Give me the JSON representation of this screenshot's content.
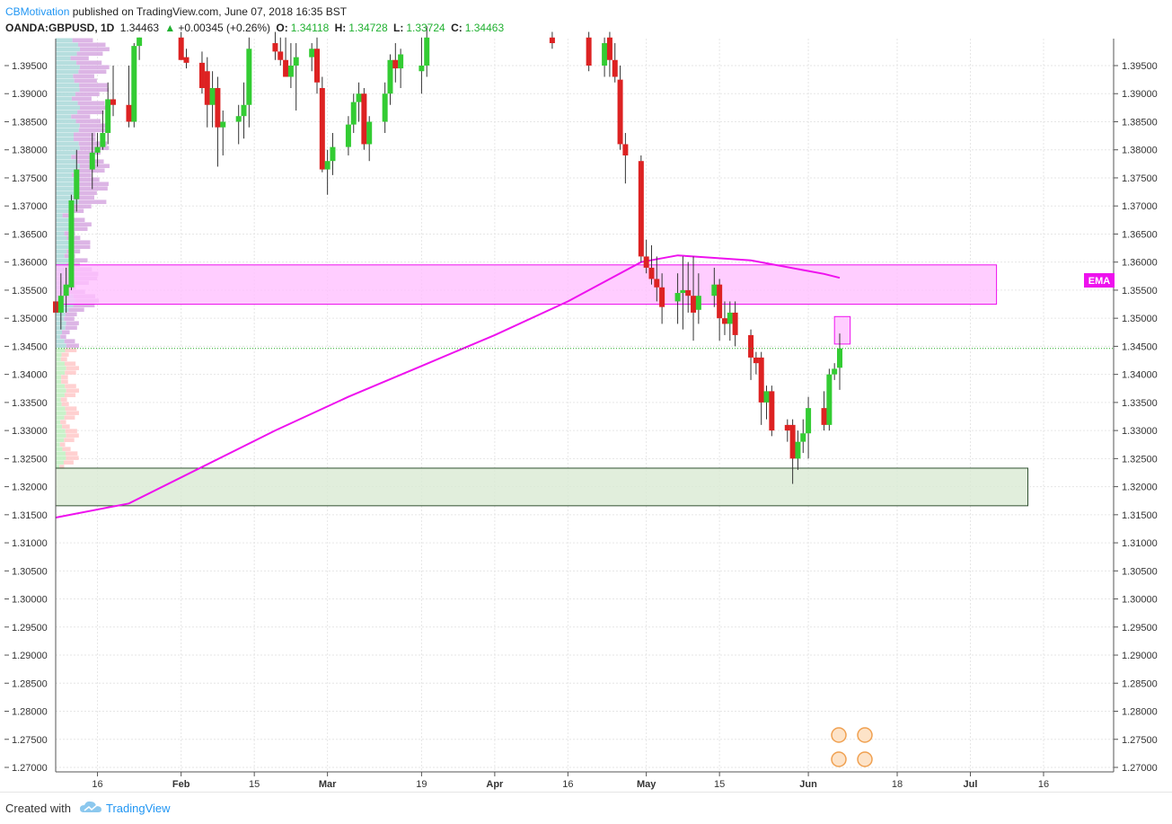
{
  "header": {
    "author": "CBMotivation",
    "published": "published on TradingView.com, June 07, 2018 16:35 BST",
    "symbol": "OANDA:GBPUSD, 1D",
    "last": "1.34463",
    "change": "+0.00345 (+0.26%)",
    "open_label": "O:",
    "open": "1.34118",
    "high_label": "H:",
    "high": "1.34728",
    "low_label": "L:",
    "low": "1.33724",
    "close_label": "C:",
    "close": "1.34463"
  },
  "ema_label": "EMA",
  "footer": {
    "created": "Created with",
    "brand": "TradingView"
  },
  "colors": {
    "up": "#33cc33",
    "down": "#dd2222",
    "ema": "#ee11ee",
    "resistance_zone": "#ffc0ff",
    "support_zone": "#d9ead3",
    "author": "#2196f3"
  },
  "chart_data": {
    "type": "candlestick",
    "title": "OANDA:GBPUSD, 1D",
    "ylim": [
      1.267,
      1.4
    ],
    "y_ticks": [
      "1.39500",
      "1.39000",
      "1.38500",
      "1.38000",
      "1.37500",
      "1.37000",
      "1.36500",
      "1.36000",
      "1.35500",
      "1.35000",
      "1.34500",
      "1.34000",
      "1.33500",
      "1.33000",
      "1.32500",
      "1.32000",
      "1.31500",
      "1.31000",
      "1.30500",
      "1.30000",
      "1.29500",
      "1.29000",
      "1.28500",
      "1.28000",
      "1.27500",
      "1.27000"
    ],
    "x_ticks": [
      "16",
      "Feb",
      "15",
      "Mar",
      "19",
      "Apr",
      "16",
      "May",
      "15",
      "Jun",
      "18",
      "Jul",
      "16"
    ],
    "last_price": 1.34463,
    "zones": [
      {
        "name": "resistance",
        "from": 1.3525,
        "to": 1.3595,
        "start": "2018-01-08",
        "end": "2018-07-07"
      },
      {
        "name": "support",
        "from": 1.3166,
        "to": 1.3233,
        "start": "2018-01-08",
        "end": "2018-07-13"
      },
      {
        "name": "target",
        "from": 1.3454,
        "to": 1.3503,
        "start": "2018-06-06",
        "end": "2018-06-09"
      }
    ],
    "candles": [
      {
        "d": "2018-01-08",
        "o": 1.353,
        "h": 1.3556,
        "l": 1.3498,
        "c": 1.351
      },
      {
        "d": "2018-01-09",
        "o": 1.351,
        "h": 1.358,
        "l": 1.348,
        "c": 1.354
      },
      {
        "d": "2018-01-10",
        "o": 1.354,
        "h": 1.359,
        "l": 1.351,
        "c": 1.356
      },
      {
        "d": "2018-01-11",
        "o": 1.3555,
        "h": 1.372,
        "l": 1.355,
        "c": 1.371
      },
      {
        "d": "2018-01-12",
        "o": 1.3712,
        "h": 1.38,
        "l": 1.369,
        "c": 1.3765
      },
      {
        "d": "2018-01-15",
        "o": 1.3765,
        "h": 1.383,
        "l": 1.373,
        "c": 1.3795
      },
      {
        "d": "2018-01-16",
        "o": 1.3795,
        "h": 1.383,
        "l": 1.377,
        "c": 1.3805
      },
      {
        "d": "2018-01-17",
        "o": 1.3805,
        "h": 1.387,
        "l": 1.38,
        "c": 1.383
      },
      {
        "d": "2018-01-18",
        "o": 1.383,
        "h": 1.392,
        "l": 1.381,
        "c": 1.389
      },
      {
        "d": "2018-01-19",
        "o": 1.389,
        "h": 1.395,
        "l": 1.386,
        "c": 1.388
      },
      {
        "d": "2018-01-22",
        "o": 1.388,
        "h": 1.395,
        "l": 1.384,
        "c": 1.385
      },
      {
        "d": "2018-01-23",
        "o": 1.385,
        "h": 1.399,
        "l": 1.384,
        "c": 1.3985
      },
      {
        "d": "2018-01-24",
        "o": 1.3985,
        "h": 1.4,
        "l": 1.396,
        "c": 1.4
      },
      {
        "d": "2018-02-01",
        "o": 1.4,
        "h": 1.401,
        "l": 1.396,
        "c": 1.396
      },
      {
        "d": "2018-02-02",
        "o": 1.3965,
        "h": 1.398,
        "l": 1.3945,
        "c": 1.3955
      },
      {
        "d": "2018-02-05",
        "o": 1.3955,
        "h": 1.3975,
        "l": 1.39,
        "c": 1.391
      },
      {
        "d": "2018-02-06",
        "o": 1.394,
        "h": 1.3965,
        "l": 1.384,
        "c": 1.388
      },
      {
        "d": "2018-02-07",
        "o": 1.388,
        "h": 1.394,
        "l": 1.384,
        "c": 1.391
      },
      {
        "d": "2018-02-08",
        "o": 1.391,
        "h": 1.393,
        "l": 1.377,
        "c": 1.384
      },
      {
        "d": "2018-02-09",
        "o": 1.384,
        "h": 1.387,
        "l": 1.379,
        "c": 1.385
      },
      {
        "d": "2018-02-12",
        "o": 1.385,
        "h": 1.388,
        "l": 1.381,
        "c": 1.386
      },
      {
        "d": "2018-02-13",
        "o": 1.386,
        "h": 1.392,
        "l": 1.382,
        "c": 1.388
      },
      {
        "d": "2018-02-14",
        "o": 1.388,
        "h": 1.4,
        "l": 1.384,
        "c": 1.398
      },
      {
        "d": "2018-02-19",
        "o": 1.399,
        "h": 1.401,
        "l": 1.396,
        "c": 1.3975
      },
      {
        "d": "2018-02-20",
        "o": 1.3975,
        "h": 1.4,
        "l": 1.395,
        "c": 1.396
      },
      {
        "d": "2018-02-21",
        "o": 1.396,
        "h": 1.4,
        "l": 1.393,
        "c": 1.393
      },
      {
        "d": "2018-02-22",
        "o": 1.393,
        "h": 1.399,
        "l": 1.391,
        "c": 1.395
      },
      {
        "d": "2018-02-23",
        "o": 1.395,
        "h": 1.399,
        "l": 1.387,
        "c": 1.3965
      },
      {
        "d": "2018-02-26",
        "o": 1.3965,
        "h": 1.399,
        "l": 1.394,
        "c": 1.398
      },
      {
        "d": "2018-02-27",
        "o": 1.398,
        "h": 1.4,
        "l": 1.39,
        "c": 1.392
      },
      {
        "d": "2018-02-28",
        "o": 1.391,
        "h": 1.393,
        "l": 1.376,
        "c": 1.3765
      },
      {
        "d": "2018-03-01",
        "o": 1.3765,
        "h": 1.38,
        "l": 1.372,
        "c": 1.378
      },
      {
        "d": "2018-03-02",
        "o": 1.378,
        "h": 1.383,
        "l": 1.3755,
        "c": 1.3805
      },
      {
        "d": "2018-03-05",
        "o": 1.3805,
        "h": 1.386,
        "l": 1.379,
        "c": 1.3845
      },
      {
        "d": "2018-03-06",
        "o": 1.3845,
        "h": 1.39,
        "l": 1.383,
        "c": 1.3885
      },
      {
        "d": "2018-03-07",
        "o": 1.3885,
        "h": 1.392,
        "l": 1.385,
        "c": 1.39
      },
      {
        "d": "2018-03-08",
        "o": 1.39,
        "h": 1.391,
        "l": 1.38,
        "c": 1.381
      },
      {
        "d": "2018-03-09",
        "o": 1.381,
        "h": 1.386,
        "l": 1.378,
        "c": 1.385
      },
      {
        "d": "2018-03-12",
        "o": 1.385,
        "h": 1.392,
        "l": 1.383,
        "c": 1.39
      },
      {
        "d": "2018-03-13",
        "o": 1.39,
        "h": 1.397,
        "l": 1.388,
        "c": 1.396
      },
      {
        "d": "2018-03-14",
        "o": 1.396,
        "h": 1.399,
        "l": 1.392,
        "c": 1.3945
      },
      {
        "d": "2018-03-15",
        "o": 1.3945,
        "h": 1.398,
        "l": 1.391,
        "c": 1.397
      },
      {
        "d": "2018-03-19",
        "o": 1.394,
        "h": 1.4,
        "l": 1.39,
        "c": 1.395
      },
      {
        "d": "2018-03-20",
        "o": 1.395,
        "h": 1.402,
        "l": 1.393,
        "c": 1.4
      },
      {
        "d": "2018-04-13",
        "o": 1.4,
        "h": 1.401,
        "l": 1.398,
        "c": 1.399
      },
      {
        "d": "2018-04-20",
        "o": 1.4,
        "h": 1.401,
        "l": 1.394,
        "c": 1.395
      },
      {
        "d": "2018-04-23",
        "o": 1.395,
        "h": 1.4,
        "l": 1.393,
        "c": 1.399
      },
      {
        "d": "2018-04-24",
        "o": 1.4,
        "h": 1.401,
        "l": 1.393,
        "c": 1.396
      },
      {
        "d": "2018-04-25",
        "o": 1.396,
        "h": 1.399,
        "l": 1.392,
        "c": 1.393
      },
      {
        "d": "2018-04-26",
        "o": 1.3925,
        "h": 1.395,
        "l": 1.38,
        "c": 1.381
      },
      {
        "d": "2018-04-27",
        "o": 1.381,
        "h": 1.383,
        "l": 1.374,
        "c": 1.379
      },
      {
        "d": "2018-04-30",
        "o": 1.378,
        "h": 1.379,
        "l": 1.36,
        "c": 1.361
      },
      {
        "d": "2018-05-01",
        "o": 1.361,
        "h": 1.364,
        "l": 1.358,
        "c": 1.359
      },
      {
        "d": "2018-05-02",
        "o": 1.359,
        "h": 1.363,
        "l": 1.356,
        "c": 1.357
      },
      {
        "d": "2018-05-03",
        "o": 1.357,
        "h": 1.361,
        "l": 1.353,
        "c": 1.3555
      },
      {
        "d": "2018-05-04",
        "o": 1.3555,
        "h": 1.358,
        "l": 1.349,
        "c": 1.352
      },
      {
        "d": "2018-05-07",
        "o": 1.353,
        "h": 1.358,
        "l": 1.349,
        "c": 1.3545
      },
      {
        "d": "2018-05-08",
        "o": 1.3545,
        "h": 1.361,
        "l": 1.348,
        "c": 1.355
      },
      {
        "d": "2018-05-09",
        "o": 1.355,
        "h": 1.36,
        "l": 1.351,
        "c": 1.354
      },
      {
        "d": "2018-05-10",
        "o": 1.354,
        "h": 1.361,
        "l": 1.346,
        "c": 1.351
      },
      {
        "d": "2018-05-11",
        "o": 1.3515,
        "h": 1.358,
        "l": 1.349,
        "c": 1.354
      },
      {
        "d": "2018-05-14",
        "o": 1.354,
        "h": 1.359,
        "l": 1.352,
        "c": 1.356
      },
      {
        "d": "2018-05-15",
        "o": 1.356,
        "h": 1.357,
        "l": 1.346,
        "c": 1.35
      },
      {
        "d": "2018-05-16",
        "o": 1.35,
        "h": 1.353,
        "l": 1.347,
        "c": 1.349
      },
      {
        "d": "2018-05-17",
        "o": 1.349,
        "h": 1.353,
        "l": 1.346,
        "c": 1.351
      },
      {
        "d": "2018-05-18",
        "o": 1.351,
        "h": 1.353,
        "l": 1.345,
        "c": 1.347
      },
      {
        "d": "2018-05-21",
        "o": 1.347,
        "h": 1.348,
        "l": 1.339,
        "c": 1.343
      },
      {
        "d": "2018-05-22",
        "o": 1.343,
        "h": 1.344,
        "l": 1.34,
        "c": 1.342
      },
      {
        "d": "2018-05-23",
        "o": 1.343,
        "h": 1.344,
        "l": 1.331,
        "c": 1.335
      },
      {
        "d": "2018-05-24",
        "o": 1.335,
        "h": 1.338,
        "l": 1.332,
        "c": 1.337
      },
      {
        "d": "2018-05-25",
        "o": 1.337,
        "h": 1.338,
        "l": 1.329,
        "c": 1.33
      },
      {
        "d": "2018-05-28",
        "o": 1.331,
        "h": 1.332,
        "l": 1.328,
        "c": 1.33
      },
      {
        "d": "2018-05-29",
        "o": 1.331,
        "h": 1.332,
        "l": 1.3205,
        "c": 1.325
      },
      {
        "d": "2018-05-30",
        "o": 1.325,
        "h": 1.33,
        "l": 1.323,
        "c": 1.328
      },
      {
        "d": "2018-05-31",
        "o": 1.328,
        "h": 1.332,
        "l": 1.326,
        "c": 1.3295
      },
      {
        "d": "2018-06-01",
        "o": 1.3295,
        "h": 1.336,
        "l": 1.325,
        "c": 1.334
      },
      {
        "d": "2018-06-04",
        "o": 1.334,
        "h": 1.337,
        "l": 1.33,
        "c": 1.331
      },
      {
        "d": "2018-06-05",
        "o": 1.331,
        "h": 1.341,
        "l": 1.33,
        "c": 1.34
      },
      {
        "d": "2018-06-06",
        "o": 1.34,
        "h": 1.342,
        "l": 1.339,
        "c": 1.341
      },
      {
        "d": "2018-06-07",
        "o": 1.34118,
        "h": 1.34728,
        "l": 1.33724,
        "c": 1.34463
      }
    ],
    "ema": [
      {
        "d": "2018-01-08",
        "v": 1.3145
      },
      {
        "d": "2018-01-22",
        "v": 1.317
      },
      {
        "d": "2018-02-05",
        "v": 1.3235
      },
      {
        "d": "2018-02-19",
        "v": 1.33
      },
      {
        "d": "2018-03-05",
        "v": 1.336
      },
      {
        "d": "2018-03-19",
        "v": 1.3415
      },
      {
        "d": "2018-04-02",
        "v": 1.347
      },
      {
        "d": "2018-04-16",
        "v": 1.353
      },
      {
        "d": "2018-04-30",
        "v": 1.36
      },
      {
        "d": "2018-05-07",
        "v": 1.3612
      },
      {
        "d": "2018-05-21",
        "v": 1.3603
      },
      {
        "d": "2018-06-04",
        "v": 1.3579
      },
      {
        "d": "2018-06-07",
        "v": 1.3572
      }
    ]
  }
}
